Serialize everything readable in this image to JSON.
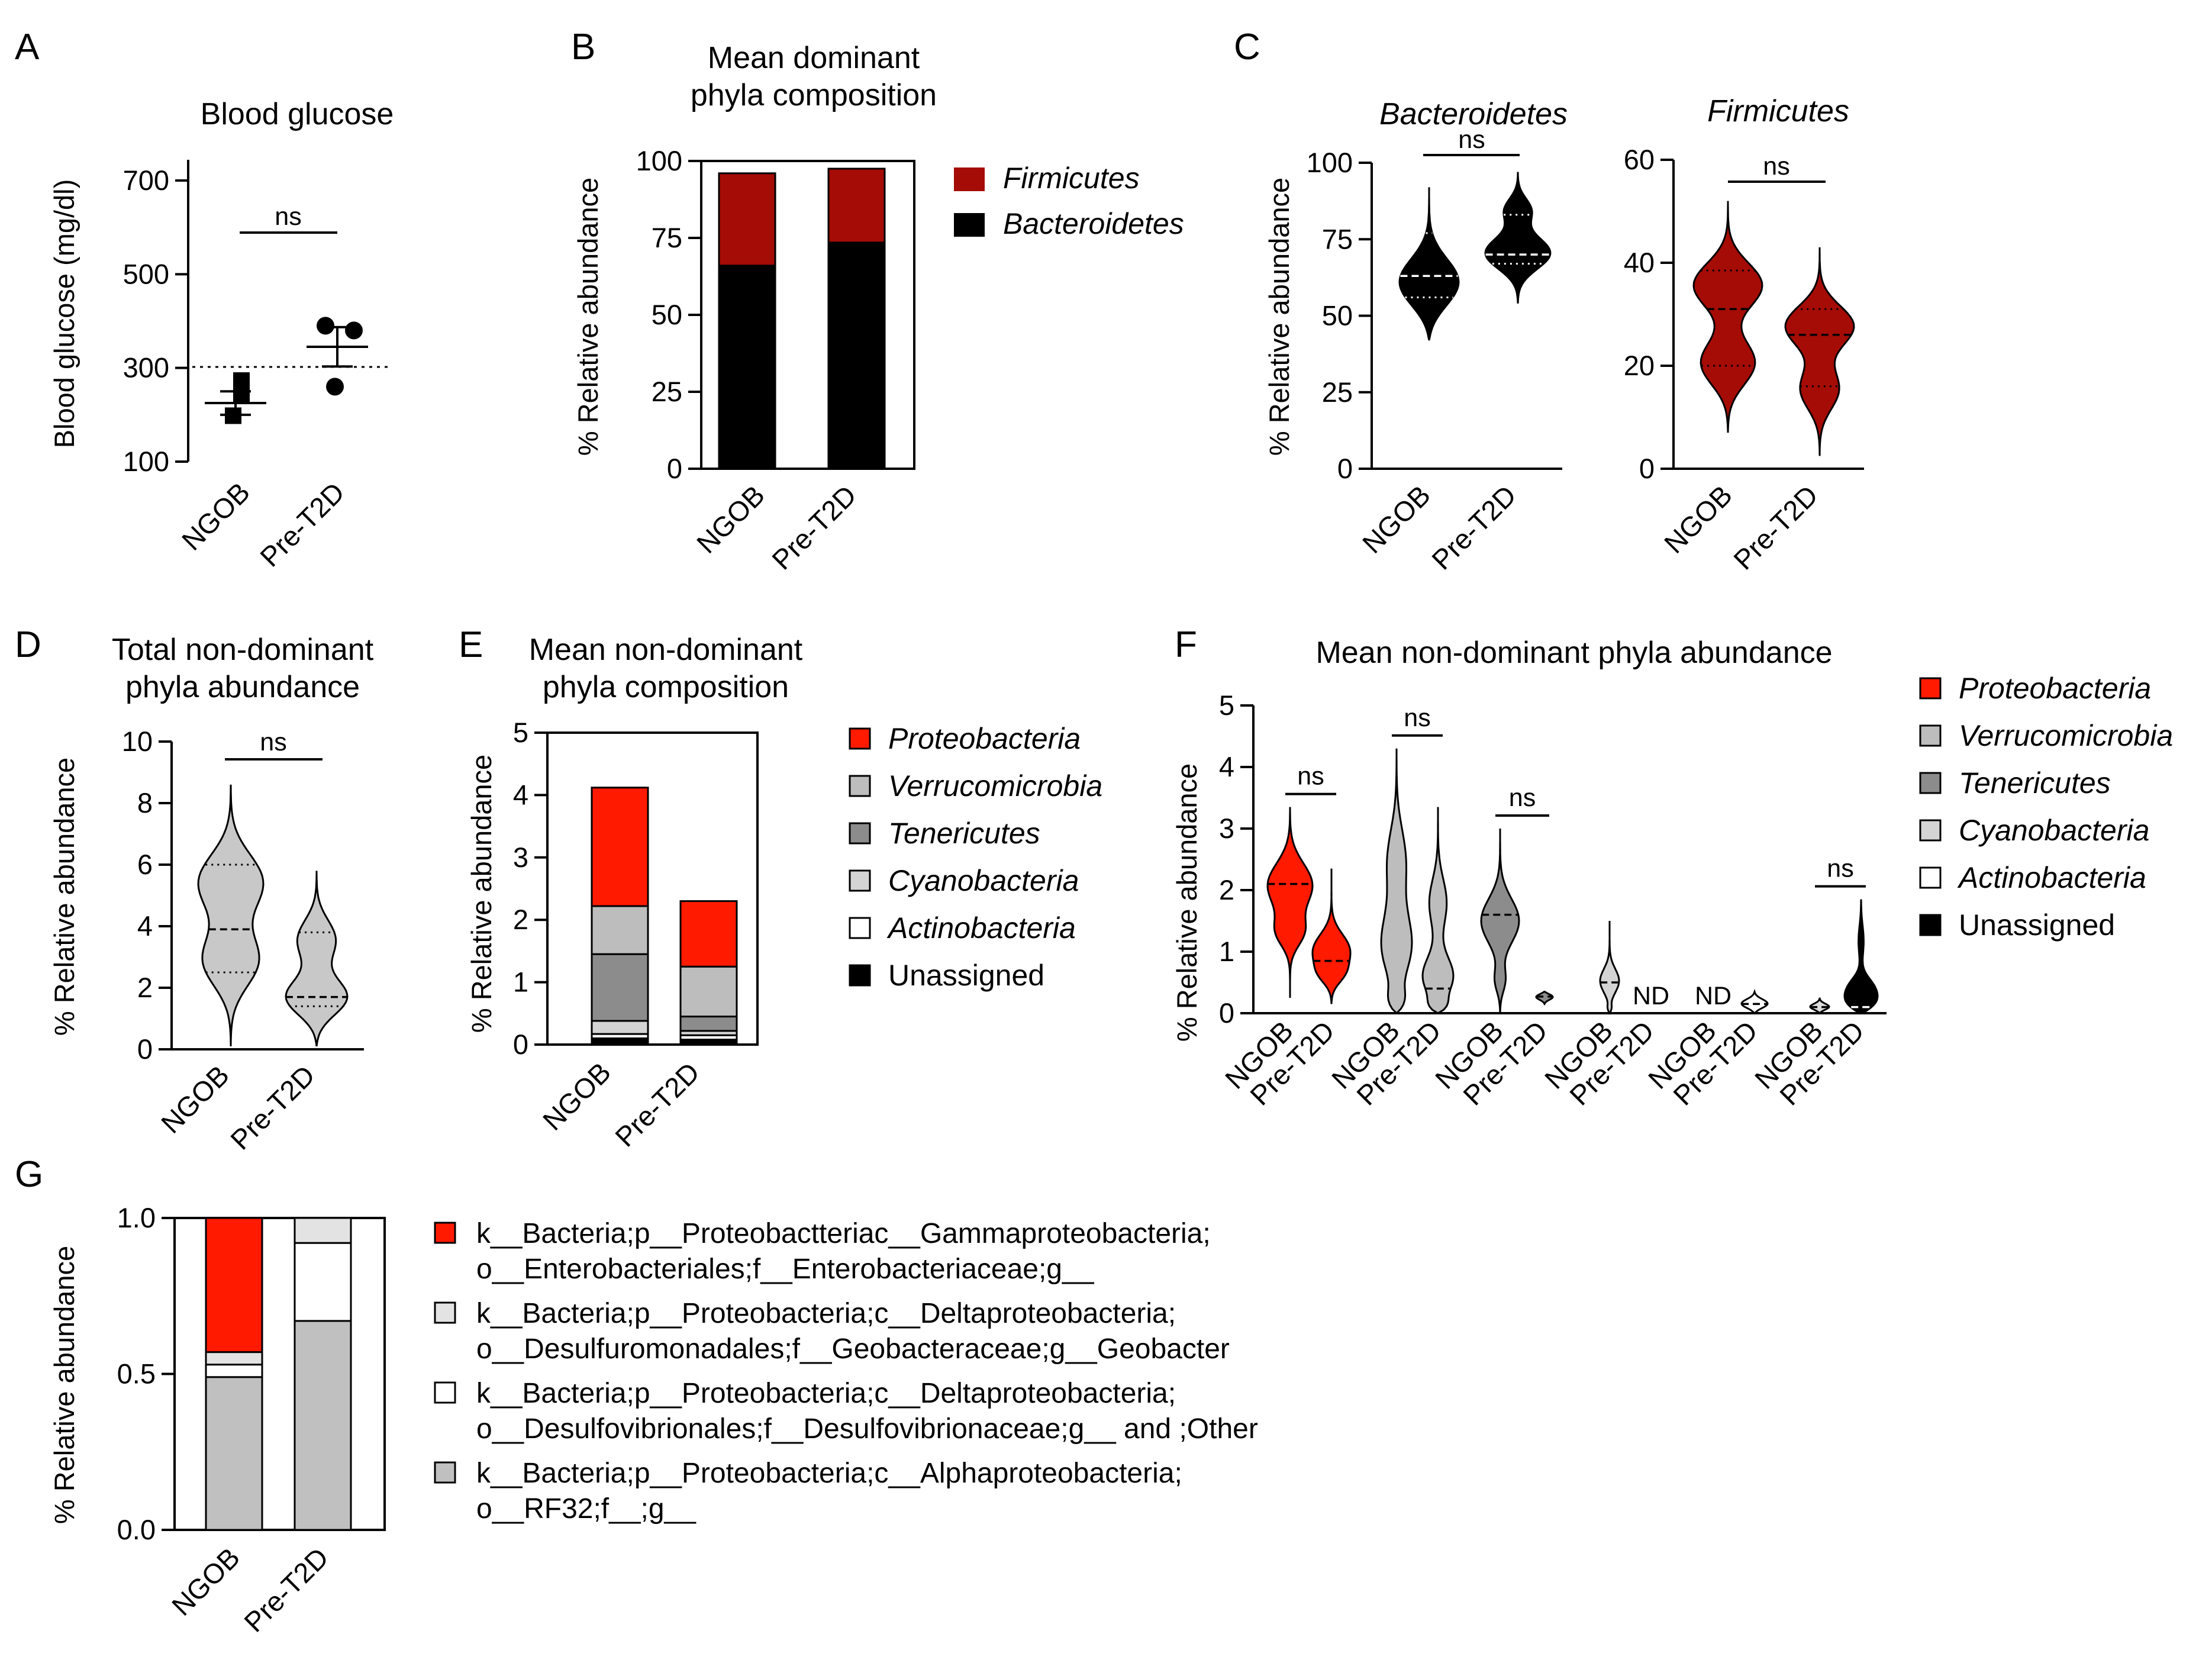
{
  "panels": {
    "A": {
      "letter": "A",
      "title": "Blood glucose",
      "ylabel": "Blood glucose (mg/dl)",
      "yticks": [
        "100",
        "300",
        "500",
        "700"
      ],
      "ytick_values": [
        100,
        300,
        500,
        700
      ],
      "xticks": [
        "NGOB",
        "Pre-T2D"
      ],
      "sig": "ns"
    },
    "B": {
      "letter": "B",
      "title_line1": "Mean dominant",
      "title_line2": "phyla composition",
      "ylabel": "% Relative abundance",
      "yticks": [
        "0",
        "25",
        "50",
        "75",
        "100"
      ],
      "ytick_values": [
        0,
        25,
        50,
        75,
        100
      ],
      "xticks": [
        "NGOB",
        "Pre-T2D"
      ],
      "legend": [
        {
          "label": "Firmicutes",
          "color": "#a50c05"
        },
        {
          "label": "Bacteroidetes",
          "color": "#000000"
        }
      ]
    },
    "C": {
      "letter": "C",
      "ylabel": "% Relative abundance",
      "left_title": "Bacteroidetes",
      "right_title": "Firmicutes",
      "left_yticks": [
        "0",
        "25",
        "50",
        "75",
        "100"
      ],
      "left_ytick_values": [
        0,
        25,
        50,
        75,
        100
      ],
      "right_yticks": [
        "0",
        "20",
        "40",
        "60"
      ],
      "right_ytick_values": [
        0,
        20,
        40,
        60
      ],
      "xticks": [
        "NGOB",
        "Pre-T2D"
      ],
      "sig_left": "ns",
      "sig_right": "ns"
    },
    "D": {
      "letter": "D",
      "title_line1": "Total non-dominant",
      "title_line2": "phyla abundance",
      "ylabel": "% Relative abundance",
      "yticks": [
        "0",
        "2",
        "4",
        "6",
        "8",
        "10"
      ],
      "ytick_values": [
        0,
        2,
        4,
        6,
        8,
        10
      ],
      "xticks": [
        "NGOB",
        "Pre-T2D"
      ],
      "sig": "ns"
    },
    "E": {
      "letter": "E",
      "title_line1": "Mean non-dominant",
      "title_line2": "phyla composition",
      "ylabel": "% Relative abundance",
      "yticks": [
        "0",
        "1",
        "2",
        "3",
        "4",
        "5"
      ],
      "ytick_values": [
        0,
        1,
        2,
        3,
        4,
        5
      ],
      "xticks": [
        "NGOB",
        "Pre-T2D"
      ]
    },
    "F": {
      "letter": "F",
      "title": "Mean non-dominant phyla abundance",
      "ylabel": "% Relative abundance",
      "yticks": [
        "0",
        "1",
        "2",
        "3",
        "4",
        "5"
      ],
      "ytick_values": [
        0,
        1,
        2,
        3,
        4,
        5
      ],
      "group_labels": [
        "NGOB",
        "Pre-T2D"
      ],
      "sig": "ns",
      "nd": "ND"
    },
    "G": {
      "letter": "G",
      "ylabel": "% Relative abundance",
      "yticks": [
        "0.0",
        "0.5",
        "1.0"
      ],
      "ytick_values": [
        0,
        0.5,
        1.0
      ],
      "xticks": [
        "NGOB",
        "Pre-T2D"
      ]
    }
  },
  "legend_nondominant": [
    {
      "label": "Proteobacteria",
      "color": "#ff1a00",
      "italic": true
    },
    {
      "label": "Verrucomicrobia",
      "color": "#bdbdbd",
      "italic": true
    },
    {
      "label": "Tenericutes",
      "color": "#8c8c8c",
      "italic": true
    },
    {
      "label": "Cyanobacteria",
      "color": "#d4d4d4",
      "italic": true
    },
    {
      "label": "Actinobacteria",
      "color": "#ffffff",
      "italic": true
    },
    {
      "label": "Unassigned",
      "color": "#000000",
      "italic": false
    }
  ],
  "legend_G": [
    {
      "line1": "k__Bacteria;p__Proteobactteriac__Gammaproteobacteria;",
      "line2": "o__Enterobacteriales;f__Enterobacteriaceae;g__",
      "color": "#ff1a00"
    },
    {
      "line1": "k__Bacteria;p__Proteobacteria;c__Deltaproteobacteria;",
      "line2": "o__Desulfuromonadales;f__Geobacteraceae;g__Geobacter",
      "color": "#e3e3e3"
    },
    {
      "line1": "k__Bacteria;p__Proteobacteria;c__Deltaproteobacteria;",
      "line2": "o__Desulfovibrionales;f__Desulfovibrionaceae;g__ and ;Other",
      "color": "#ffffff"
    },
    {
      "line1": "k__Bacteria;p__Proteobacteria;c__Alphaproteobacteria;",
      "line2": "o__RF32;f__;g__",
      "color": "#c0c0c0"
    }
  ],
  "chart_data": [
    {
      "panel": "A",
      "type": "scatter",
      "title": "Blood glucose",
      "ylabel": "Blood glucose (mg/dl)",
      "categories": [
        "NGOB",
        "Pre-T2D"
      ],
      "ylim": [
        75,
        750
      ],
      "threshold": 300,
      "series": [
        {
          "name": "NGOB",
          "points": [
            273,
            245,
            198
          ],
          "mean": 225,
          "sem": 25,
          "marker": "square"
        },
        {
          "name": "Pre-T2D",
          "points": [
            390,
            380,
            260
          ],
          "mean": 345,
          "sem": 42,
          "marker": "circle"
        }
      ]
    },
    {
      "panel": "B",
      "type": "bar",
      "stacked": true,
      "title": "Mean dominant phyla composition",
      "ylabel": "% Relative abundance",
      "categories": [
        "NGOB",
        "Pre-T2D"
      ],
      "ylim": [
        0,
        100
      ],
      "series": [
        {
          "name": "Bacteroidetes",
          "values": [
            66,
            73.5
          ],
          "color": "#000000"
        },
        {
          "name": "Firmicutes",
          "values": [
            30,
            24
          ],
          "color": "#a50c05"
        }
      ]
    },
    {
      "panel": "C-left",
      "type": "violin",
      "title": "Bacteroidetes",
      "ylabel": "% Relative abundance",
      "categories": [
        "NGOB",
        "Pre-T2D"
      ],
      "ylim": [
        0,
        100
      ],
      "series": [
        {
          "name": "NGOB",
          "min": 42,
          "max": 92,
          "q1": 56,
          "median": 63,
          "q3": 77,
          "color": "#000000"
        },
        {
          "name": "Pre-T2D",
          "min": 54,
          "max": 97,
          "q1": 67,
          "median": 70,
          "q3": 83,
          "color": "#000000"
        }
      ]
    },
    {
      "panel": "C-right",
      "type": "violin",
      "title": "Firmicutes",
      "ylabel": "% Relative abundance",
      "categories": [
        "NGOB",
        "Pre-T2D"
      ],
      "ylim": [
        0,
        60
      ],
      "series": [
        {
          "name": "NGOB",
          "min": 7,
          "max": 52,
          "q1": 20,
          "median": 31,
          "q3": 38.5,
          "color": "#a50c05"
        },
        {
          "name": "Pre-T2D",
          "min": 2.5,
          "max": 43,
          "q1": 16,
          "median": 26,
          "q3": 31,
          "color": "#a50c05"
        }
      ]
    },
    {
      "panel": "D",
      "type": "violin",
      "title": "Total non-dominant phyla abundance",
      "ylabel": "% Relative abundance",
      "categories": [
        "NGOB",
        "Pre-T2D"
      ],
      "ylim": [
        0,
        10
      ],
      "series": [
        {
          "name": "NGOB",
          "min": 0.1,
          "max": 8.6,
          "q1": 2.5,
          "median": 3.9,
          "q3": 6,
          "color": "#c8c8c8"
        },
        {
          "name": "Pre-T2D",
          "min": 0.1,
          "max": 5.8,
          "q1": 1.4,
          "median": 1.7,
          "q3": 3.8,
          "color": "#c8c8c8"
        }
      ]
    },
    {
      "panel": "E",
      "type": "bar",
      "stacked": true,
      "title": "Mean non-dominant phyla composition",
      "ylabel": "% Relative abundance",
      "categories": [
        "NGOB",
        "Pre-T2D"
      ],
      "ylim": [
        0,
        5
      ],
      "series": [
        {
          "name": "Unassigned",
          "values": [
            0.1,
            0.08
          ],
          "color": "#000000"
        },
        {
          "name": "Actinobacteria",
          "values": [
            0.07,
            0.07
          ],
          "color": "#ffffff"
        },
        {
          "name": "Cyanobacteria",
          "values": [
            0.21,
            0.07
          ],
          "color": "#d4d4d4"
        },
        {
          "name": "Tenericutes",
          "values": [
            1.07,
            0.23
          ],
          "color": "#8c8c8c"
        },
        {
          "name": "Verrucomicrobia",
          "values": [
            0.77,
            0.8
          ],
          "color": "#bdbdbd"
        },
        {
          "name": "Proteobacteria",
          "values": [
            1.9,
            1.05
          ],
          "color": "#ff1a00"
        }
      ]
    },
    {
      "panel": "F",
      "type": "violin",
      "title": "Mean non-dominant phyla abundance",
      "ylabel": "% Relative abundance",
      "ylim": [
        0,
        5
      ],
      "groups": [
        "Proteobacteria",
        "Verrucomicrobia",
        "Tenericutes",
        "Cyanobacteria",
        "Actinobacteria",
        "Unassigned"
      ],
      "series": [
        {
          "group": "Proteobacteria",
          "name": "NGOB",
          "min": 0.25,
          "max": 3.35,
          "median": 2.1,
          "color": "#ff1a00"
        },
        {
          "group": "Proteobacteria",
          "name": "Pre-T2D",
          "min": 0.15,
          "max": 2.35,
          "median": 0.85,
          "color": "#ff1a00"
        },
        {
          "group": "Verrucomicrobia",
          "name": "NGOB",
          "min": 0,
          "max": 4.3,
          "median": 0,
          "color": "#bdbdbd"
        },
        {
          "group": "Verrucomicrobia",
          "name": "Pre-T2D",
          "min": 0,
          "max": 3.35,
          "median": 0.4,
          "color": "#bdbdbd"
        },
        {
          "group": "Tenericutes",
          "name": "NGOB",
          "min": 0,
          "max": 3.0,
          "median": 1.6,
          "color": "#8c8c8c"
        },
        {
          "group": "Tenericutes",
          "name": "Pre-T2D",
          "min": 0.15,
          "max": 0.35,
          "median": 0.27,
          "color": "#8c8c8c"
        },
        {
          "group": "Cyanobacteria",
          "name": "NGOB",
          "min": 0,
          "max": 1.5,
          "median": 0.5,
          "color": "#d4d4d4"
        },
        {
          "group": "Cyanobacteria",
          "name": "Pre-T2D",
          "nd": true
        },
        {
          "group": "Actinobacteria",
          "name": "NGOB",
          "nd": true
        },
        {
          "group": "Actinobacteria",
          "name": "Pre-T2D",
          "min": 0,
          "max": 0.35,
          "median": 0.15,
          "color": "#ffffff"
        },
        {
          "group": "Unassigned",
          "name": "NGOB",
          "min": 0,
          "max": 0.25,
          "median": 0.1,
          "color": "#dddddd"
        },
        {
          "group": "Unassigned",
          "name": "Pre-T2D",
          "min": 0,
          "max": 1.85,
          "median": 0.1,
          "color": "#000000"
        }
      ],
      "significance": [
        {
          "group": "Proteobacteria",
          "label": "ns"
        },
        {
          "group": "Verrucomicrobia",
          "label": "ns"
        },
        {
          "group": "Tenericutes",
          "label": "ns"
        },
        {
          "group": "Unassigned",
          "label": "ns"
        }
      ]
    },
    {
      "panel": "G",
      "type": "bar",
      "stacked": true,
      "ylabel": "% Relative abundance",
      "categories": [
        "NGOB",
        "Pre-T2D"
      ],
      "ylim": [
        0,
        1.0
      ],
      "series": [
        {
          "name": "Alphaproteobacteria RF32",
          "values": [
            0.49,
            0.67
          ],
          "color": "#c0c0c0"
        },
        {
          "name": "Desulfovibrionaceae",
          "values": [
            0.04,
            0.25
          ],
          "color": "#ffffff"
        },
        {
          "name": "Geobacter",
          "values": [
            0.04,
            0.08
          ],
          "color": "#e3e3e3"
        },
        {
          "name": "Enterobacteriaceae",
          "values": [
            0.43,
            0.0
          ],
          "color": "#ff1a00"
        }
      ]
    }
  ]
}
